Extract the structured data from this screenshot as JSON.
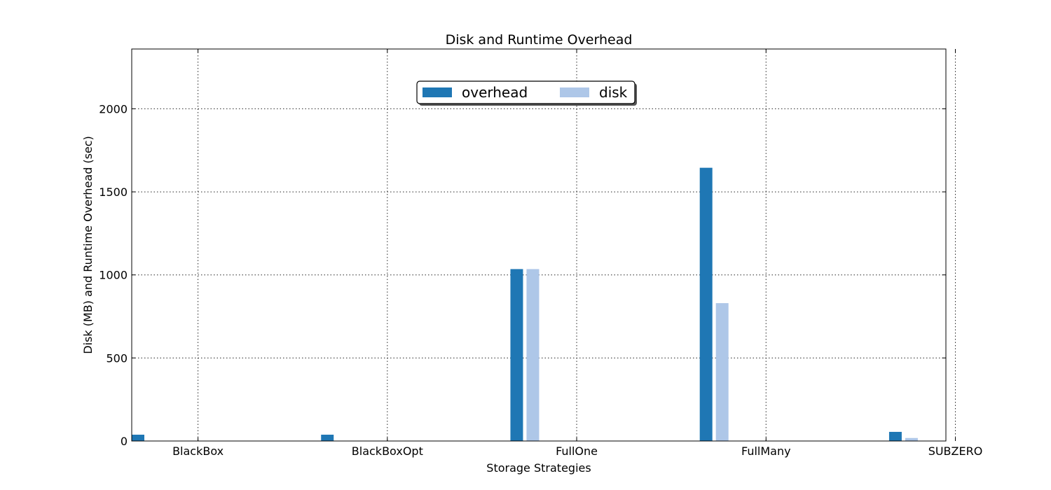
{
  "chart_data": {
    "type": "bar",
    "title": "Disk and Runtime Overhead",
    "xlabel": "Storage Strategies",
    "ylabel": "Disk (MB) and Runtime Overhead (sec)",
    "categories": [
      "BlackBox",
      "BlackBoxOpt",
      "FullOne",
      "FullMany",
      "SUBZERO"
    ],
    "series": [
      {
        "name": "overhead",
        "color": "#1f77b4",
        "values": [
          38,
          38,
          1035,
          1645,
          55
        ]
      },
      {
        "name": "disk",
        "color": "#aec7e8",
        "values": [
          0,
          0,
          1035,
          830,
          18
        ]
      }
    ],
    "ylim": [
      0,
      2360
    ],
    "yticks": [
      0,
      500,
      1000,
      1500,
      2000
    ],
    "grid": true,
    "legend_position": "upper center"
  }
}
